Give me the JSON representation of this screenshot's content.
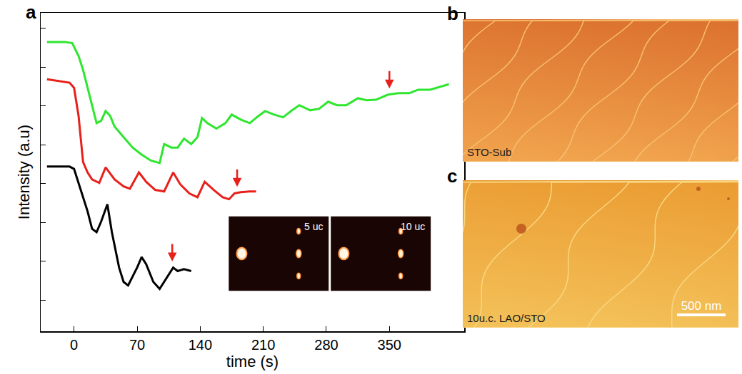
{
  "panel_labels": [
    "a",
    "b",
    "c"
  ],
  "chart_data": {
    "type": "line",
    "xlabel": "time (s)",
    "ylabel": "Intensity (a.u)",
    "xlim": [
      -37,
      433
    ],
    "xticks": [
      0,
      70,
      140,
      210,
      280,
      350
    ],
    "ylim": [
      0,
      8.2
    ],
    "yticks": [
      0.8,
      1.8,
      2.8,
      3.8,
      4.8,
      5.8,
      6.8,
      7.8
    ],
    "tick_labels": "x",
    "grid": false,
    "series": [
      {
        "color": "#2ee62e",
        "x": [
          -30,
          -10,
          -2,
          5,
          10,
          15,
          20,
          25,
          30,
          35,
          40,
          45,
          55,
          65,
          75,
          85,
          95,
          98,
          100,
          108,
          115,
          122,
          130,
          137,
          142,
          148,
          158,
          168,
          175,
          185,
          195,
          205,
          212,
          222,
          232,
          242,
          250,
          262,
          272,
          282,
          292,
          302,
          315,
          325,
          335,
          348,
          360,
          372,
          382,
          395,
          410,
          416
        ],
        "values": [
          7.45,
          7.45,
          7.42,
          7.09,
          6.73,
          6.27,
          5.82,
          5.36,
          5.42,
          5.67,
          5.55,
          5.27,
          5.0,
          4.73,
          4.55,
          4.4,
          4.33,
          4.64,
          4.82,
          4.73,
          4.73,
          4.96,
          4.82,
          5.0,
          5.49,
          5.36,
          5.22,
          5.36,
          5.58,
          5.45,
          5.36,
          5.55,
          5.67,
          5.58,
          5.51,
          5.69,
          5.82,
          5.69,
          5.73,
          5.91,
          5.82,
          5.82,
          6.0,
          5.95,
          5.96,
          6.09,
          6.13,
          6.13,
          6.22,
          6.22,
          6.33,
          6.36
        ]
      },
      {
        "color": "#e8201a",
        "x": [
          -30,
          -5,
          0,
          5,
          10,
          15,
          20,
          28,
          35,
          45,
          55,
          62,
          72,
          80,
          90,
          100,
          110,
          118,
          128,
          137,
          145,
          155,
          165,
          172,
          178,
          185,
          195,
          202
        ],
        "values": [
          6.49,
          6.4,
          6.27,
          5.55,
          4.36,
          4.09,
          3.91,
          3.82,
          4.22,
          3.91,
          3.73,
          3.67,
          4.09,
          3.85,
          3.64,
          3.6,
          4.09,
          3.78,
          3.55,
          3.45,
          3.85,
          3.64,
          3.45,
          3.4,
          3.55,
          3.58,
          3.6,
          3.6
        ]
      },
      {
        "color": "#000000",
        "x": [
          -30,
          -5,
          0,
          5,
          15,
          20,
          25,
          30,
          37,
          42,
          50,
          55,
          60,
          70,
          75,
          80,
          88,
          95,
          105,
          110,
          115,
          122,
          130
        ],
        "values": [
          4.24,
          4.24,
          4.18,
          3.82,
          3.09,
          2.64,
          2.55,
          2.82,
          3.27,
          2.55,
          1.64,
          1.27,
          1.18,
          1.64,
          1.91,
          1.73,
          1.27,
          1.09,
          1.45,
          1.64,
          1.55,
          1.6,
          1.55
        ]
      }
    ],
    "arrows": [
      {
        "x": 350,
        "y": 6.25,
        "color": "#e8201a"
      },
      {
        "x": 181,
        "y": 3.72,
        "color": "#e8201a"
      },
      {
        "x": 109,
        "y": 1.8,
        "color": "#e8201a"
      }
    ],
    "insets": [
      {
        "label": "5 uc"
      },
      {
        "label": "10 uc"
      }
    ]
  },
  "images": [
    {
      "panel": "b",
      "caption": "STO-Sub"
    },
    {
      "panel": "c",
      "caption": "10u.c. LAO/STO",
      "scale_bar": "500 nm"
    }
  ]
}
